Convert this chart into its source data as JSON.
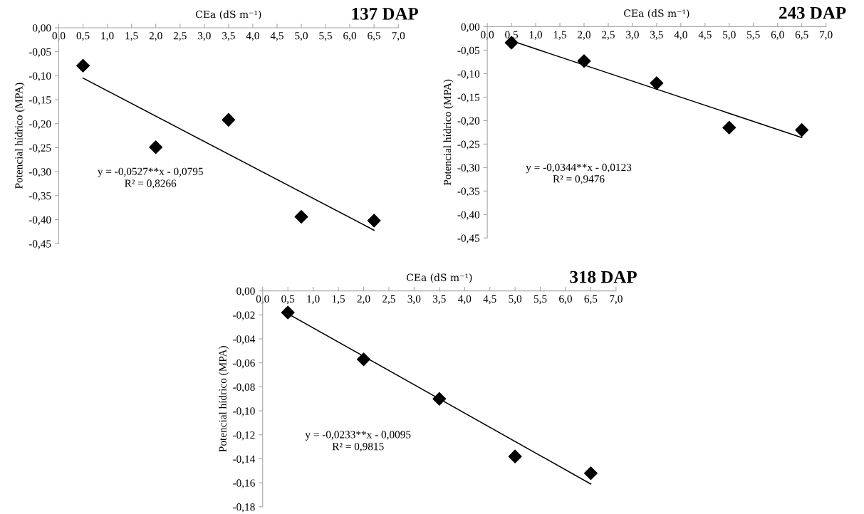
{
  "chart_data": [
    {
      "type": "scatter",
      "title": "137 DAP",
      "xlabel": "CEa (dS m⁻¹)",
      "ylabel": "Potencial hídrico (MPA)",
      "grid": false,
      "xlim": [
        0,
        7
      ],
      "xticks": [
        {
          "value": 0,
          "label": "0,0"
        },
        {
          "value": 0.5,
          "label": "0,5"
        },
        {
          "value": 1,
          "label": "1,0"
        },
        {
          "value": 1.5,
          "label": "1,5"
        },
        {
          "value": 2,
          "label": "2,0"
        },
        {
          "value": 2.5,
          "label": "2,5"
        },
        {
          "value": 3,
          "label": "3,0"
        },
        {
          "value": 3.5,
          "label": "3,5"
        },
        {
          "value": 4,
          "label": "4,0"
        },
        {
          "value": 4.5,
          "label": "4,5"
        },
        {
          "value": 5,
          "label": "5,0"
        },
        {
          "value": 5.5,
          "label": "5,5"
        },
        {
          "value": 6,
          "label": "6,0"
        },
        {
          "value": 6.5,
          "label": "6,5"
        },
        {
          "value": 7,
          "label": "7,0"
        }
      ],
      "ylim": [
        -0.45,
        0
      ],
      "yticks": [
        {
          "value": 0,
          "label": "0,00"
        },
        {
          "value": -0.05,
          "label": "-0,05"
        },
        {
          "value": -0.1,
          "label": "-0,10"
        },
        {
          "value": -0.15,
          "label": "-0,15"
        },
        {
          "value": -0.2,
          "label": "-0,20"
        },
        {
          "value": -0.25,
          "label": "-0,25"
        },
        {
          "value": -0.3,
          "label": "-0,30"
        },
        {
          "value": -0.35,
          "label": "-0,35"
        },
        {
          "value": -0.4,
          "label": "-0,40"
        },
        {
          "value": -0.45,
          "label": "-0,45"
        }
      ],
      "annotations": [
        "y = -0,0527**x - 0,0795",
        "R² = 0,8266"
      ],
      "series": [
        {
          "x": [
            0.5,
            2.0,
            3.5,
            5.0,
            6.5
          ],
          "values": [
            -0.079,
            -0.249,
            -0.192,
            -0.394,
            -0.402
          ],
          "color": "#000000",
          "marker": "diamond"
        },
        {
          "type": "line",
          "x": [
            0.5,
            6.5
          ],
          "values": [
            -0.105,
            -0.422
          ],
          "color": "#000000",
          "marker": "none",
          "line_style": "solid"
        }
      ]
    },
    {
      "type": "scatter",
      "title": "243 DAP",
      "xlabel": "CEa (dS m⁻¹)",
      "ylabel": "Potencial hídrico (MPA)",
      "grid": false,
      "xlim": [
        0,
        7
      ],
      "xticks": [
        {
          "value": 0,
          "label": "0,0"
        },
        {
          "value": 0.5,
          "label": "0,5"
        },
        {
          "value": 1,
          "label": "1,0"
        },
        {
          "value": 1.5,
          "label": "1,5"
        },
        {
          "value": 2,
          "label": "2,0"
        },
        {
          "value": 2.5,
          "label": "2,5"
        },
        {
          "value": 3,
          "label": "3,0"
        },
        {
          "value": 3.5,
          "label": "3,5"
        },
        {
          "value": 4,
          "label": "4,0"
        },
        {
          "value": 4.5,
          "label": "4,5"
        },
        {
          "value": 5,
          "label": "5,0"
        },
        {
          "value": 5.5,
          "label": "5,5"
        },
        {
          "value": 6,
          "label": "6,0"
        },
        {
          "value": 6.5,
          "label": "6,5"
        },
        {
          "value": 7,
          "label": "7,0"
        }
      ],
      "ylim": [
        -0.45,
        0
      ],
      "yticks": [
        {
          "value": 0,
          "label": "0,00"
        },
        {
          "value": -0.05,
          "label": "-0,05"
        },
        {
          "value": -0.1,
          "label": "-0,10"
        },
        {
          "value": -0.15,
          "label": "-0,15"
        },
        {
          "value": -0.2,
          "label": "-0,20"
        },
        {
          "value": -0.25,
          "label": "-0,25"
        },
        {
          "value": -0.3,
          "label": "-0,30"
        },
        {
          "value": -0.35,
          "label": "-0,35"
        },
        {
          "value": -0.4,
          "label": "-0,40"
        },
        {
          "value": -0.45,
          "label": "-0,45"
        }
      ],
      "annotations": [
        "y = -0,0344**x - 0,0123",
        "R² = 0,9476"
      ],
      "series": [
        {
          "x": [
            0.5,
            2.0,
            3.5,
            5.0,
            6.5
          ],
          "values": [
            -0.034,
            -0.073,
            -0.12,
            -0.215,
            -0.22
          ],
          "color": "#000000",
          "marker": "diamond"
        },
        {
          "type": "line",
          "x": [
            0.5,
            6.5
          ],
          "values": [
            -0.03,
            -0.236
          ],
          "color": "#000000",
          "marker": "none",
          "line_style": "solid"
        }
      ]
    },
    {
      "type": "scatter",
      "title": "318 DAP",
      "xlabel": "CEa (dS m⁻¹)",
      "ylabel": "Potencial hídrico (MPA)",
      "grid": false,
      "xlim": [
        0,
        7
      ],
      "xticks": [
        {
          "value": 0,
          "label": "0,0"
        },
        {
          "value": 0.5,
          "label": "0,5"
        },
        {
          "value": 1,
          "label": "1,0"
        },
        {
          "value": 1.5,
          "label": "1,5"
        },
        {
          "value": 2,
          "label": "2,0"
        },
        {
          "value": 2.5,
          "label": "2,5"
        },
        {
          "value": 3,
          "label": "3,0"
        },
        {
          "value": 3.5,
          "label": "3,5"
        },
        {
          "value": 4,
          "label": "4,0"
        },
        {
          "value": 4.5,
          "label": "4,5"
        },
        {
          "value": 5,
          "label": "5,0"
        },
        {
          "value": 5.5,
          "label": "5,5"
        },
        {
          "value": 6,
          "label": "6,0"
        },
        {
          "value": 6.5,
          "label": "6,5"
        },
        {
          "value": 7,
          "label": "7,0"
        }
      ],
      "ylim": [
        -0.18,
        0
      ],
      "yticks": [
        {
          "value": 0,
          "label": "0,00"
        },
        {
          "value": -0.02,
          "label": "-0,02"
        },
        {
          "value": -0.04,
          "label": "-0,04"
        },
        {
          "value": -0.06,
          "label": "-0,06"
        },
        {
          "value": -0.08,
          "label": "-0,08"
        },
        {
          "value": -0.1,
          "label": "-0,10"
        },
        {
          "value": -0.12,
          "label": "-0,12"
        },
        {
          "value": -0.14,
          "label": "-0,14"
        },
        {
          "value": -0.16,
          "label": "-0,16"
        },
        {
          "value": -0.18,
          "label": "-0,18"
        }
      ],
      "annotations": [
        "y = -0,0233**x - 0,0095",
        "R² = 0,9815"
      ],
      "series": [
        {
          "x": [
            0.5,
            2.0,
            3.5,
            5.0,
            6.5
          ],
          "values": [
            -0.018,
            -0.057,
            -0.09,
            -0.138,
            -0.152
          ],
          "color": "#000000",
          "marker": "diamond"
        },
        {
          "type": "line",
          "x": [
            0.5,
            6.5
          ],
          "values": [
            -0.019,
            -0.161
          ],
          "color": "#000000",
          "marker": "none",
          "line_style": "solid"
        }
      ]
    }
  ]
}
